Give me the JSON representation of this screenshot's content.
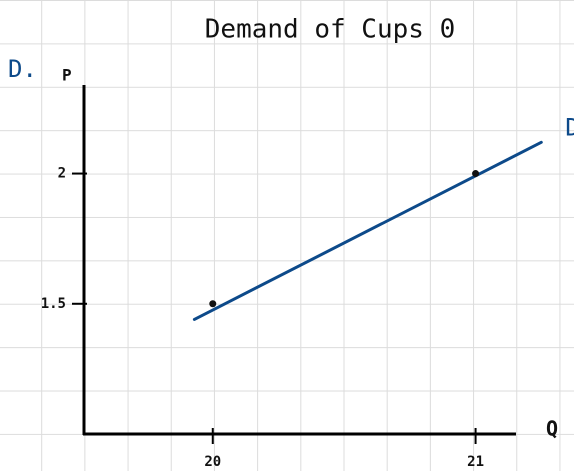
{
  "chart_data": {
    "type": "line",
    "title": "Demand of Cups 0",
    "annotations": [
      "D."
    ],
    "xlabel": "Q",
    "ylabel": "P",
    "xlim": [
      19.51,
      21.15
    ],
    "ylim": [
      1.0,
      2.34
    ],
    "xticks": [
      20,
      21
    ],
    "yticks": [
      1.5,
      2
    ],
    "grid": false,
    "series": [
      {
        "name": "D",
        "color": "#0d4a8a",
        "x": [
          19.93,
          21.25
        ],
        "values": [
          1.44,
          2.12
        ]
      },
      {
        "color": "#111111",
        "x": [
          20,
          21
        ],
        "values": [
          1.5,
          2
        ],
        "markers": true
      }
    ]
  }
}
